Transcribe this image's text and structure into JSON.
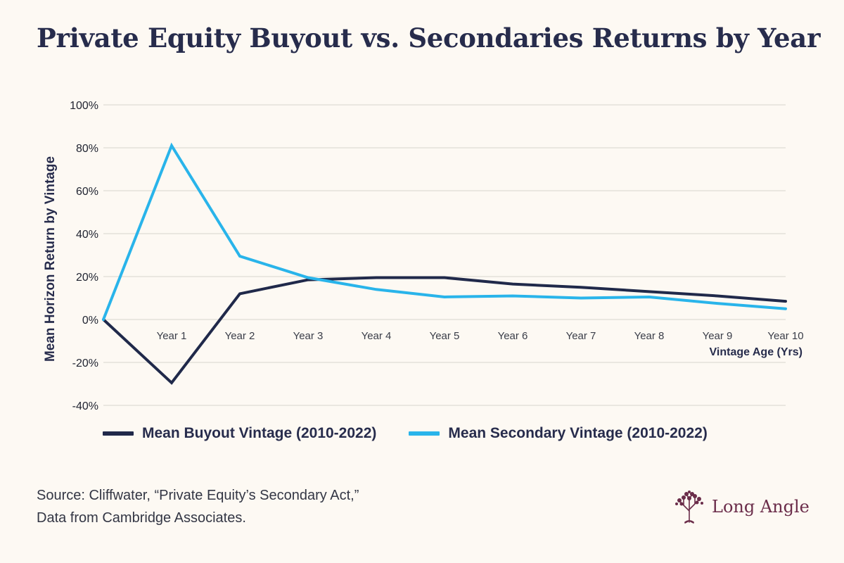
{
  "title": "Private Equity Buyout vs. Secondaries Returns by Year",
  "chart_data": {
    "type": "line",
    "title": "Private Equity Buyout vs. Secondaries Returns by Year",
    "xlabel": "Vintage Age (Yrs)",
    "ylabel": "Mean Horizon Return by Vintage",
    "x": [
      0,
      1,
      2,
      3,
      4,
      5,
      6,
      7,
      8,
      9,
      10
    ],
    "x_tick_labels": [
      "Year 1",
      "Year 2",
      "Year 3",
      "Year 4",
      "Year 5",
      "Year 6",
      "Year 7",
      "Year 8",
      "Year 9",
      "Year 10"
    ],
    "y_tick_labels": [
      "100%",
      "80%",
      "60%",
      "40%",
      "20%",
      "0%",
      "-20%",
      "-40%"
    ],
    "y_ticks": [
      100,
      80,
      60,
      40,
      20,
      0,
      -20,
      -40
    ],
    "ylim": [
      -40,
      100
    ],
    "grid": true,
    "legend_position": "bottom",
    "series": [
      {
        "name": "Mean Buyout Vintage (2010-2022)",
        "color": "#20294a",
        "values": [
          0,
          -29.5,
          12,
          18.5,
          19.5,
          19.5,
          16.5,
          15,
          13,
          11,
          8.5
        ]
      },
      {
        "name": "Mean Secondary Vintage (2010-2022)",
        "color": "#29b4ea",
        "values": [
          0,
          81,
          29.5,
          19.5,
          14,
          10.5,
          11,
          10,
          10.5,
          7.5,
          5
        ]
      }
    ]
  },
  "source": {
    "line1": "Source: Cliffwater, “Private Equity’s Secondary Act,”",
    "line2": "Data from Cambridge Associates."
  },
  "brand": {
    "name": "Long Angle",
    "color": "#6b2d4a",
    "logo": "tree-icon"
  }
}
